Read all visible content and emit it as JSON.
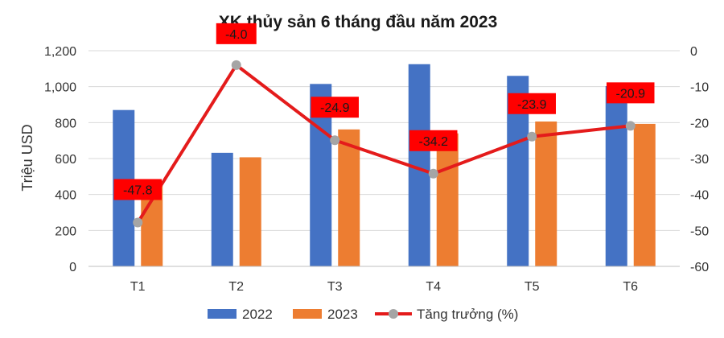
{
  "chart_data": {
    "type": "bar",
    "title": "XK thủy sản 6 tháng đầu năm 2023",
    "ylabel": "Triệu USD",
    "y2label": "",
    "categories": [
      "T1",
      "T2",
      "T3",
      "T4",
      "T5",
      "T6"
    ],
    "ylim": [
      0,
      1200
    ],
    "yticks": [
      "0",
      "200",
      "400",
      "600",
      "800",
      "1,000",
      "1,200"
    ],
    "y2lim": [
      -60,
      0
    ],
    "y2ticks": [
      "-60",
      "-50",
      "-40",
      "-30",
      "-20",
      "-10",
      "0"
    ],
    "series": [
      {
        "name": "2022",
        "type": "bar",
        "color": "#4472C4",
        "values": [
          870,
          632,
          1015,
          1125,
          1060,
          1003
        ]
      },
      {
        "name": "2023",
        "type": "bar",
        "color": "#ED7D31",
        "values": [
          454,
          607,
          762,
          740,
          806,
          793
        ]
      },
      {
        "name": "Tăng trưởng (%)",
        "type": "line",
        "axis": "right",
        "color": "#E41B1B",
        "marker_color": "#A5A5A5",
        "values": [
          -47.8,
          -4.0,
          -24.9,
          -34.2,
          -23.9,
          -20.9
        ],
        "labels": [
          "-47.8",
          "-4.0",
          "-24.9",
          "-34.2",
          "-23.9",
          "-20.9"
        ]
      }
    ],
    "label_bg_color": "#FF0000",
    "grid": true,
    "legend_position": "bottom"
  }
}
